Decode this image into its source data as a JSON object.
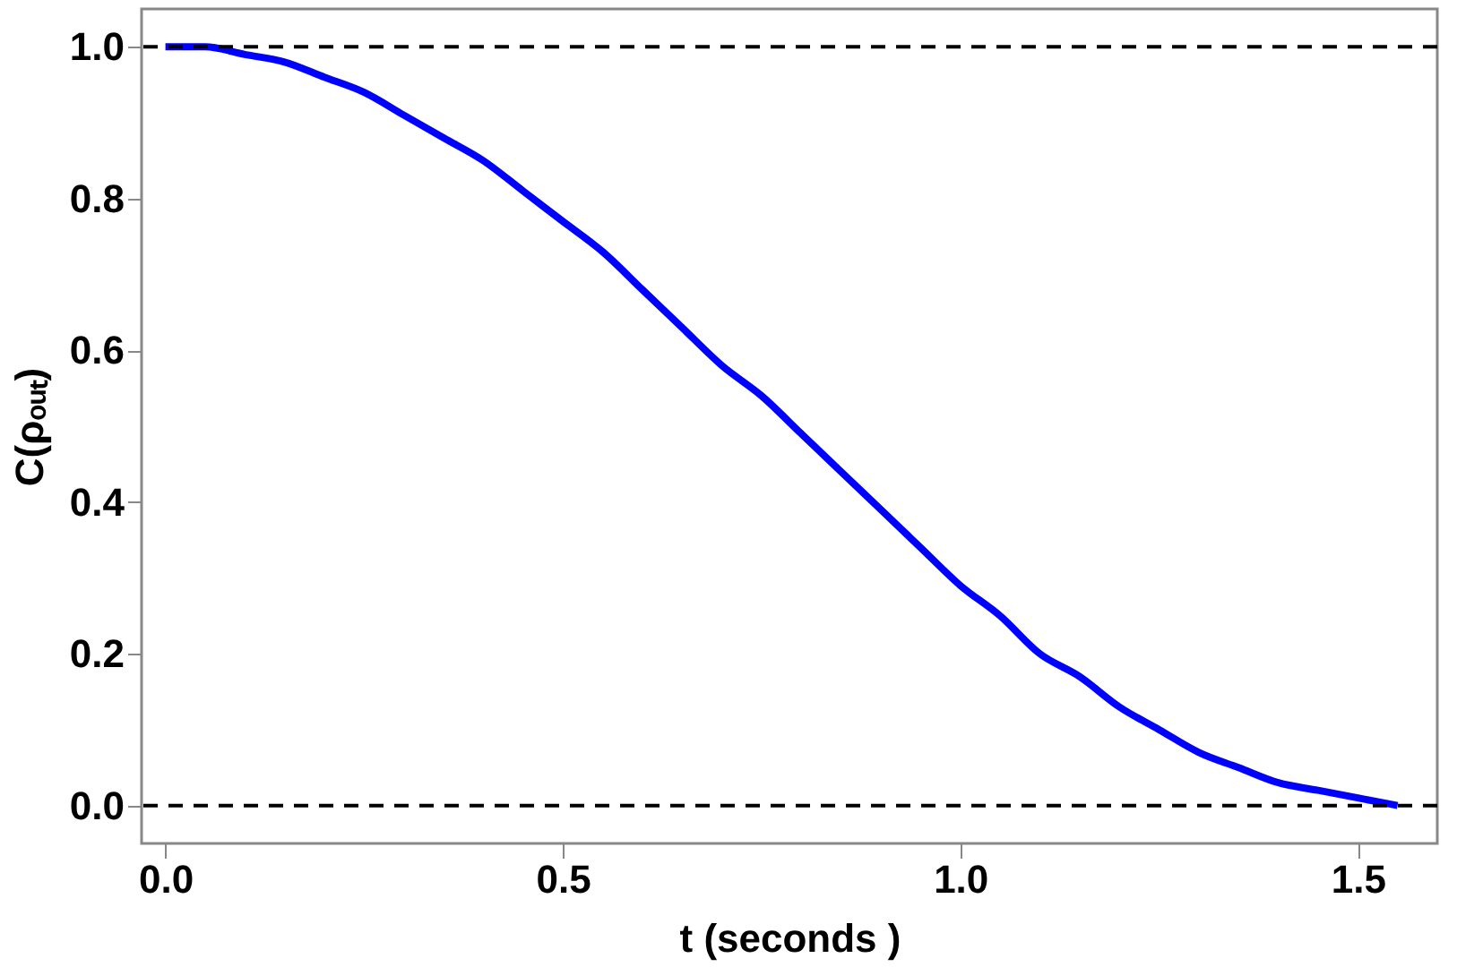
{
  "chart_data": {
    "type": "line",
    "xlabel": "t (seconds )",
    "ylabel": "C(ρₒᵤₜ)",
    "x": [
      0,
      0.05,
      0.1,
      0.15,
      0.2,
      0.25,
      0.3,
      0.35,
      0.4,
      0.45,
      0.5,
      0.55,
      0.6,
      0.65,
      0.7,
      0.75,
      0.8,
      0.85,
      0.9,
      0.95,
      1.0,
      1.05,
      1.1,
      1.15,
      1.2,
      1.25,
      1.3,
      1.35,
      1.4,
      1.45,
      1.5,
      1.55
    ],
    "series": [
      {
        "color": "#0000ff",
        "values": [
          1.0,
          1.0,
          0.99,
          0.98,
          0.96,
          0.94,
          0.91,
          0.88,
          0.85,
          0.81,
          0.77,
          0.73,
          0.68,
          0.63,
          0.58,
          0.54,
          0.49,
          0.44,
          0.39,
          0.34,
          0.29,
          0.25,
          0.2,
          0.17,
          0.13,
          0.1,
          0.07,
          0.05,
          0.03,
          0.02,
          0.01,
          0.0
        ]
      }
    ],
    "xlim": [
      -0.03,
      1.6
    ],
    "ylim": [
      -0.05,
      1.05
    ],
    "xticks": [
      {
        "value": 0,
        "label": "0.0"
      },
      0.5,
      {
        "value": 1,
        "label": "1.0"
      },
      1.5
    ],
    "yticks": [
      {
        "value": 0,
        "label": "0.0"
      },
      0.2,
      0.4,
      0.6,
      0.8,
      {
        "value": 1,
        "label": "1.0"
      }
    ],
    "ref_lines": [
      {
        "axis": "y",
        "value": 0,
        "color": "#000000",
        "line_style": "dashed"
      },
      {
        "axis": "y",
        "value": 1,
        "color": "#000000",
        "line_style": "dashed"
      }
    ],
    "grid": false,
    "marker": "none",
    "line_style": "solid"
  }
}
